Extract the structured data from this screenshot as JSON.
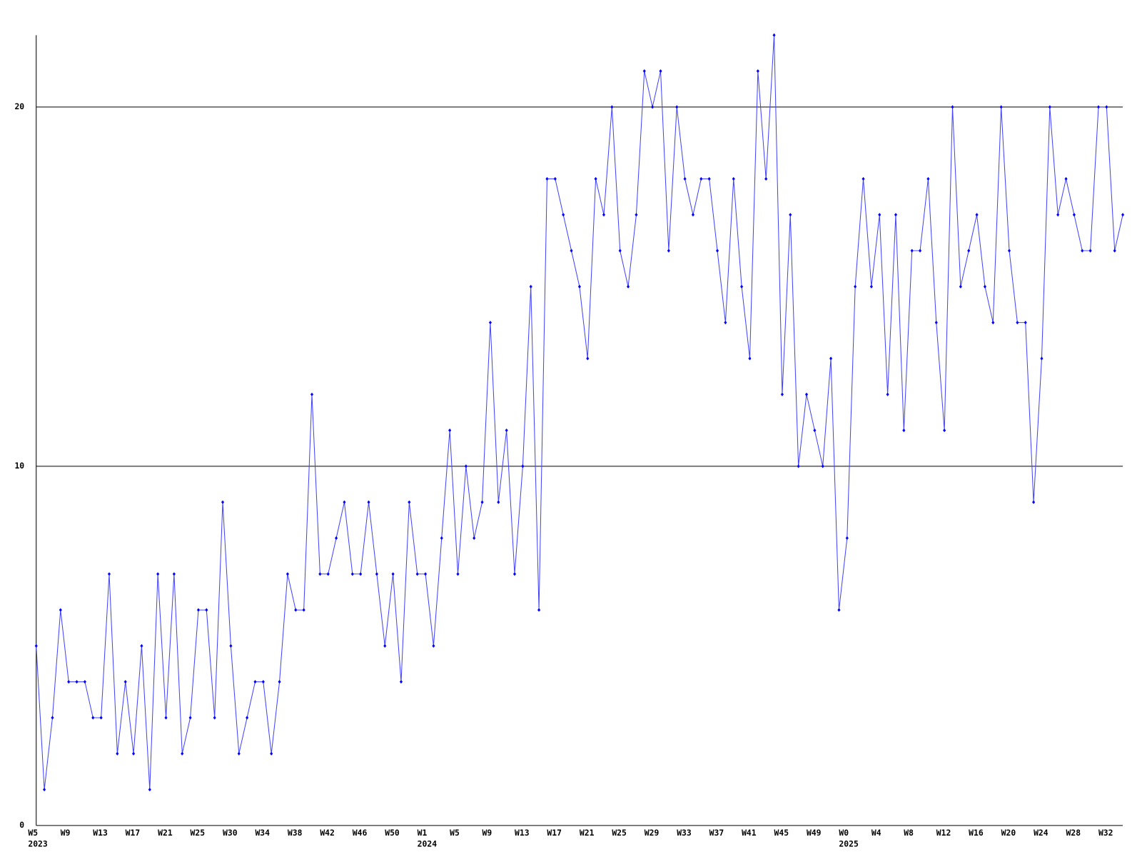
{
  "chart_data": {
    "type": "line",
    "categories": [
      "W5",
      null,
      null,
      null,
      "W9",
      null,
      null,
      null,
      "W13",
      null,
      null,
      null,
      "W17",
      null,
      null,
      null,
      "W21",
      null,
      null,
      null,
      "W25",
      null,
      null,
      null,
      "W30",
      null,
      null,
      null,
      "W34",
      null,
      null,
      null,
      "W38",
      null,
      null,
      null,
      "W42",
      null,
      null,
      null,
      "W46",
      null,
      null,
      null,
      "W50",
      null,
      null,
      null,
      "W1",
      null,
      null,
      null,
      "W5",
      null,
      null,
      null,
      "W9",
      null,
      null,
      null,
      "W13",
      null,
      null,
      null,
      "W17",
      null,
      null,
      null,
      "W21",
      null,
      null,
      null,
      "W25",
      null,
      null,
      null,
      "W29",
      null,
      null,
      null,
      "W33",
      null,
      null,
      null,
      "W37",
      null,
      null,
      null,
      "W41",
      null,
      null,
      null,
      "W45",
      null,
      null,
      null,
      "W49",
      null,
      null,
      null,
      "W0",
      null,
      null,
      null,
      "W4",
      null,
      null,
      null,
      "W8",
      null,
      null,
      null,
      "W12",
      null,
      null,
      null,
      "W16",
      null,
      null,
      null,
      "W20",
      null,
      null,
      null,
      "W24",
      null,
      null,
      null,
      "W28",
      null,
      null,
      null,
      "W32",
      null,
      null
    ],
    "year_labels": [
      "2023",
      null,
      null,
      null,
      null,
      null,
      null,
      null,
      null,
      null,
      null,
      null,
      null,
      null,
      null,
      null,
      null,
      null,
      null,
      null,
      null,
      null,
      null,
      null,
      null,
      null,
      null,
      null,
      null,
      null,
      null,
      null,
      null,
      null,
      null,
      null,
      null,
      null,
      null,
      null,
      null,
      null,
      null,
      null,
      null,
      null,
      null,
      null,
      "2024",
      null,
      null,
      null,
      null,
      null,
      null,
      null,
      null,
      null,
      null,
      null,
      null,
      null,
      null,
      null,
      null,
      null,
      null,
      null,
      null,
      null,
      null,
      null,
      null,
      null,
      null,
      null,
      null,
      null,
      null,
      null,
      null,
      null,
      null,
      null,
      null,
      null,
      null,
      null,
      null,
      null,
      null,
      null,
      null,
      null,
      null,
      null,
      null,
      null,
      null,
      null,
      "2025",
      null,
      null,
      null,
      null,
      null,
      null,
      null,
      null,
      null,
      null,
      null,
      null,
      null,
      null,
      null,
      null,
      null,
      null,
      null,
      null,
      null,
      null,
      null,
      null,
      null,
      null,
      null,
      null,
      null,
      null,
      null,
      null,
      null,
      null
    ],
    "series": [
      {
        "color": "#0000ff",
        "line_color": "#4444ff",
        "values": [
          5,
          1,
          3,
          6,
          4,
          4,
          4,
          3,
          3,
          7,
          2,
          4,
          2,
          5,
          1,
          7,
          3,
          7,
          2,
          3,
          6,
          6,
          3,
          9,
          5,
          2,
          3,
          4,
          4,
          2,
          4,
          7,
          6,
          6,
          12,
          7,
          7,
          8,
          9,
          7,
          7,
          9,
          7,
          5,
          7,
          4,
          9,
          7,
          7,
          5,
          8,
          11,
          7,
          10,
          8,
          9,
          14,
          9,
          11,
          7,
          10,
          15,
          6,
          18,
          18,
          17,
          16,
          15,
          13,
          18,
          17,
          20,
          16,
          15,
          17,
          21,
          20,
          21,
          16,
          20,
          18,
          17,
          18,
          18,
          16,
          14,
          18,
          15,
          13,
          21,
          18,
          22,
          12,
          17,
          10,
          12,
          11,
          10,
          13,
          6,
          8,
          15,
          18,
          15,
          17,
          12,
          17,
          11,
          16,
          16,
          18,
          14,
          11,
          20,
          15,
          16,
          17,
          15,
          14,
          20,
          16,
          14,
          14,
          9,
          13,
          20,
          17,
          18,
          17,
          16,
          16,
          20,
          20,
          16,
          17
        ]
      }
    ],
    "ylim": [
      0,
      22
    ],
    "yticks": [
      0,
      10,
      20
    ],
    "grid": true
  }
}
